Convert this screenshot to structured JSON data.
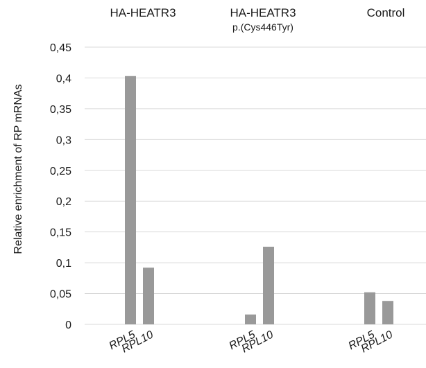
{
  "chart_data": {
    "type": "bar",
    "title": "",
    "xlabel": "",
    "ylabel": "Relative enrichment of RP mRNAs",
    "ylim": [
      0,
      0.45
    ],
    "yticks": [
      "0",
      "0,05",
      "0,1",
      "0,15",
      "0,2",
      "0,25",
      "0,3",
      "0,35",
      "0,4",
      "0,45"
    ],
    "ytick_values": [
      0,
      0.05,
      0.1,
      0.15,
      0.2,
      0.25,
      0.3,
      0.35,
      0.4,
      0.45
    ],
    "grid": true,
    "bar_color": "#999999",
    "groups": [
      {
        "title": "HA-HEATR3",
        "subtitle": "",
        "categories": [
          "RPL5",
          "RPL10"
        ],
        "values": [
          0.403,
          0.092
        ]
      },
      {
        "title": "HA-HEATR3",
        "subtitle": "p.(Cys446Tyr)",
        "categories": [
          "RPL5",
          "RPL10"
        ],
        "values": [
          0.016,
          0.126
        ]
      },
      {
        "title": "Control",
        "subtitle": "",
        "categories": [
          "RPL5",
          "RPL10"
        ],
        "values": [
          0.052,
          0.038
        ]
      }
    ]
  }
}
